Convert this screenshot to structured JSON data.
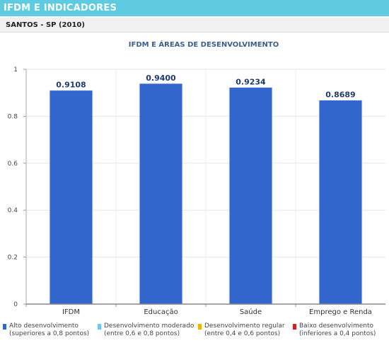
{
  "header": {
    "title": "IFDM E INDICADORES"
  },
  "subheader": {
    "title": "SANTOS - SP (2010)"
  },
  "chart_data": {
    "type": "bar",
    "title": "IFDM E ÁREAS DE DESENVOLVIMENTO",
    "categories": [
      "IFDM",
      "Educação",
      "Saúde",
      "Emprego e Renda"
    ],
    "values": [
      0.9108,
      0.94,
      0.9234,
      0.8689
    ],
    "value_labels": [
      "0.9108",
      "0.9400",
      "0.9234",
      "0.8689"
    ],
    "ylim": [
      0,
      1
    ],
    "yticks": [
      0,
      0.2,
      0.4,
      0.6,
      0.8,
      1
    ],
    "ytick_labels": [
      "0",
      "0.2",
      "0.4",
      "0.6",
      "0.8",
      "1"
    ],
    "grid": true,
    "bar_color": "#3366cc",
    "legend_position": "bottom"
  },
  "legend": [
    {
      "line1": "Alto desenvolvimento",
      "line2": "(superiores a 0,8 pontos)",
      "color": "#3366cc"
    },
    {
      "line1": "Desenvolvimento moderado",
      "line2": "(entre 0,6 e 0,8 pontos)",
      "color": "#66ccee"
    },
    {
      "line1": "Desenvolvimento regular",
      "line2": "(entre 0,4 e 0,6 pontos)",
      "color": "#f0b400"
    },
    {
      "line1": "Baixo desenvolvimento",
      "line2": "(inferiores a 0,4 pontos)",
      "color": "#cc2222"
    }
  ]
}
